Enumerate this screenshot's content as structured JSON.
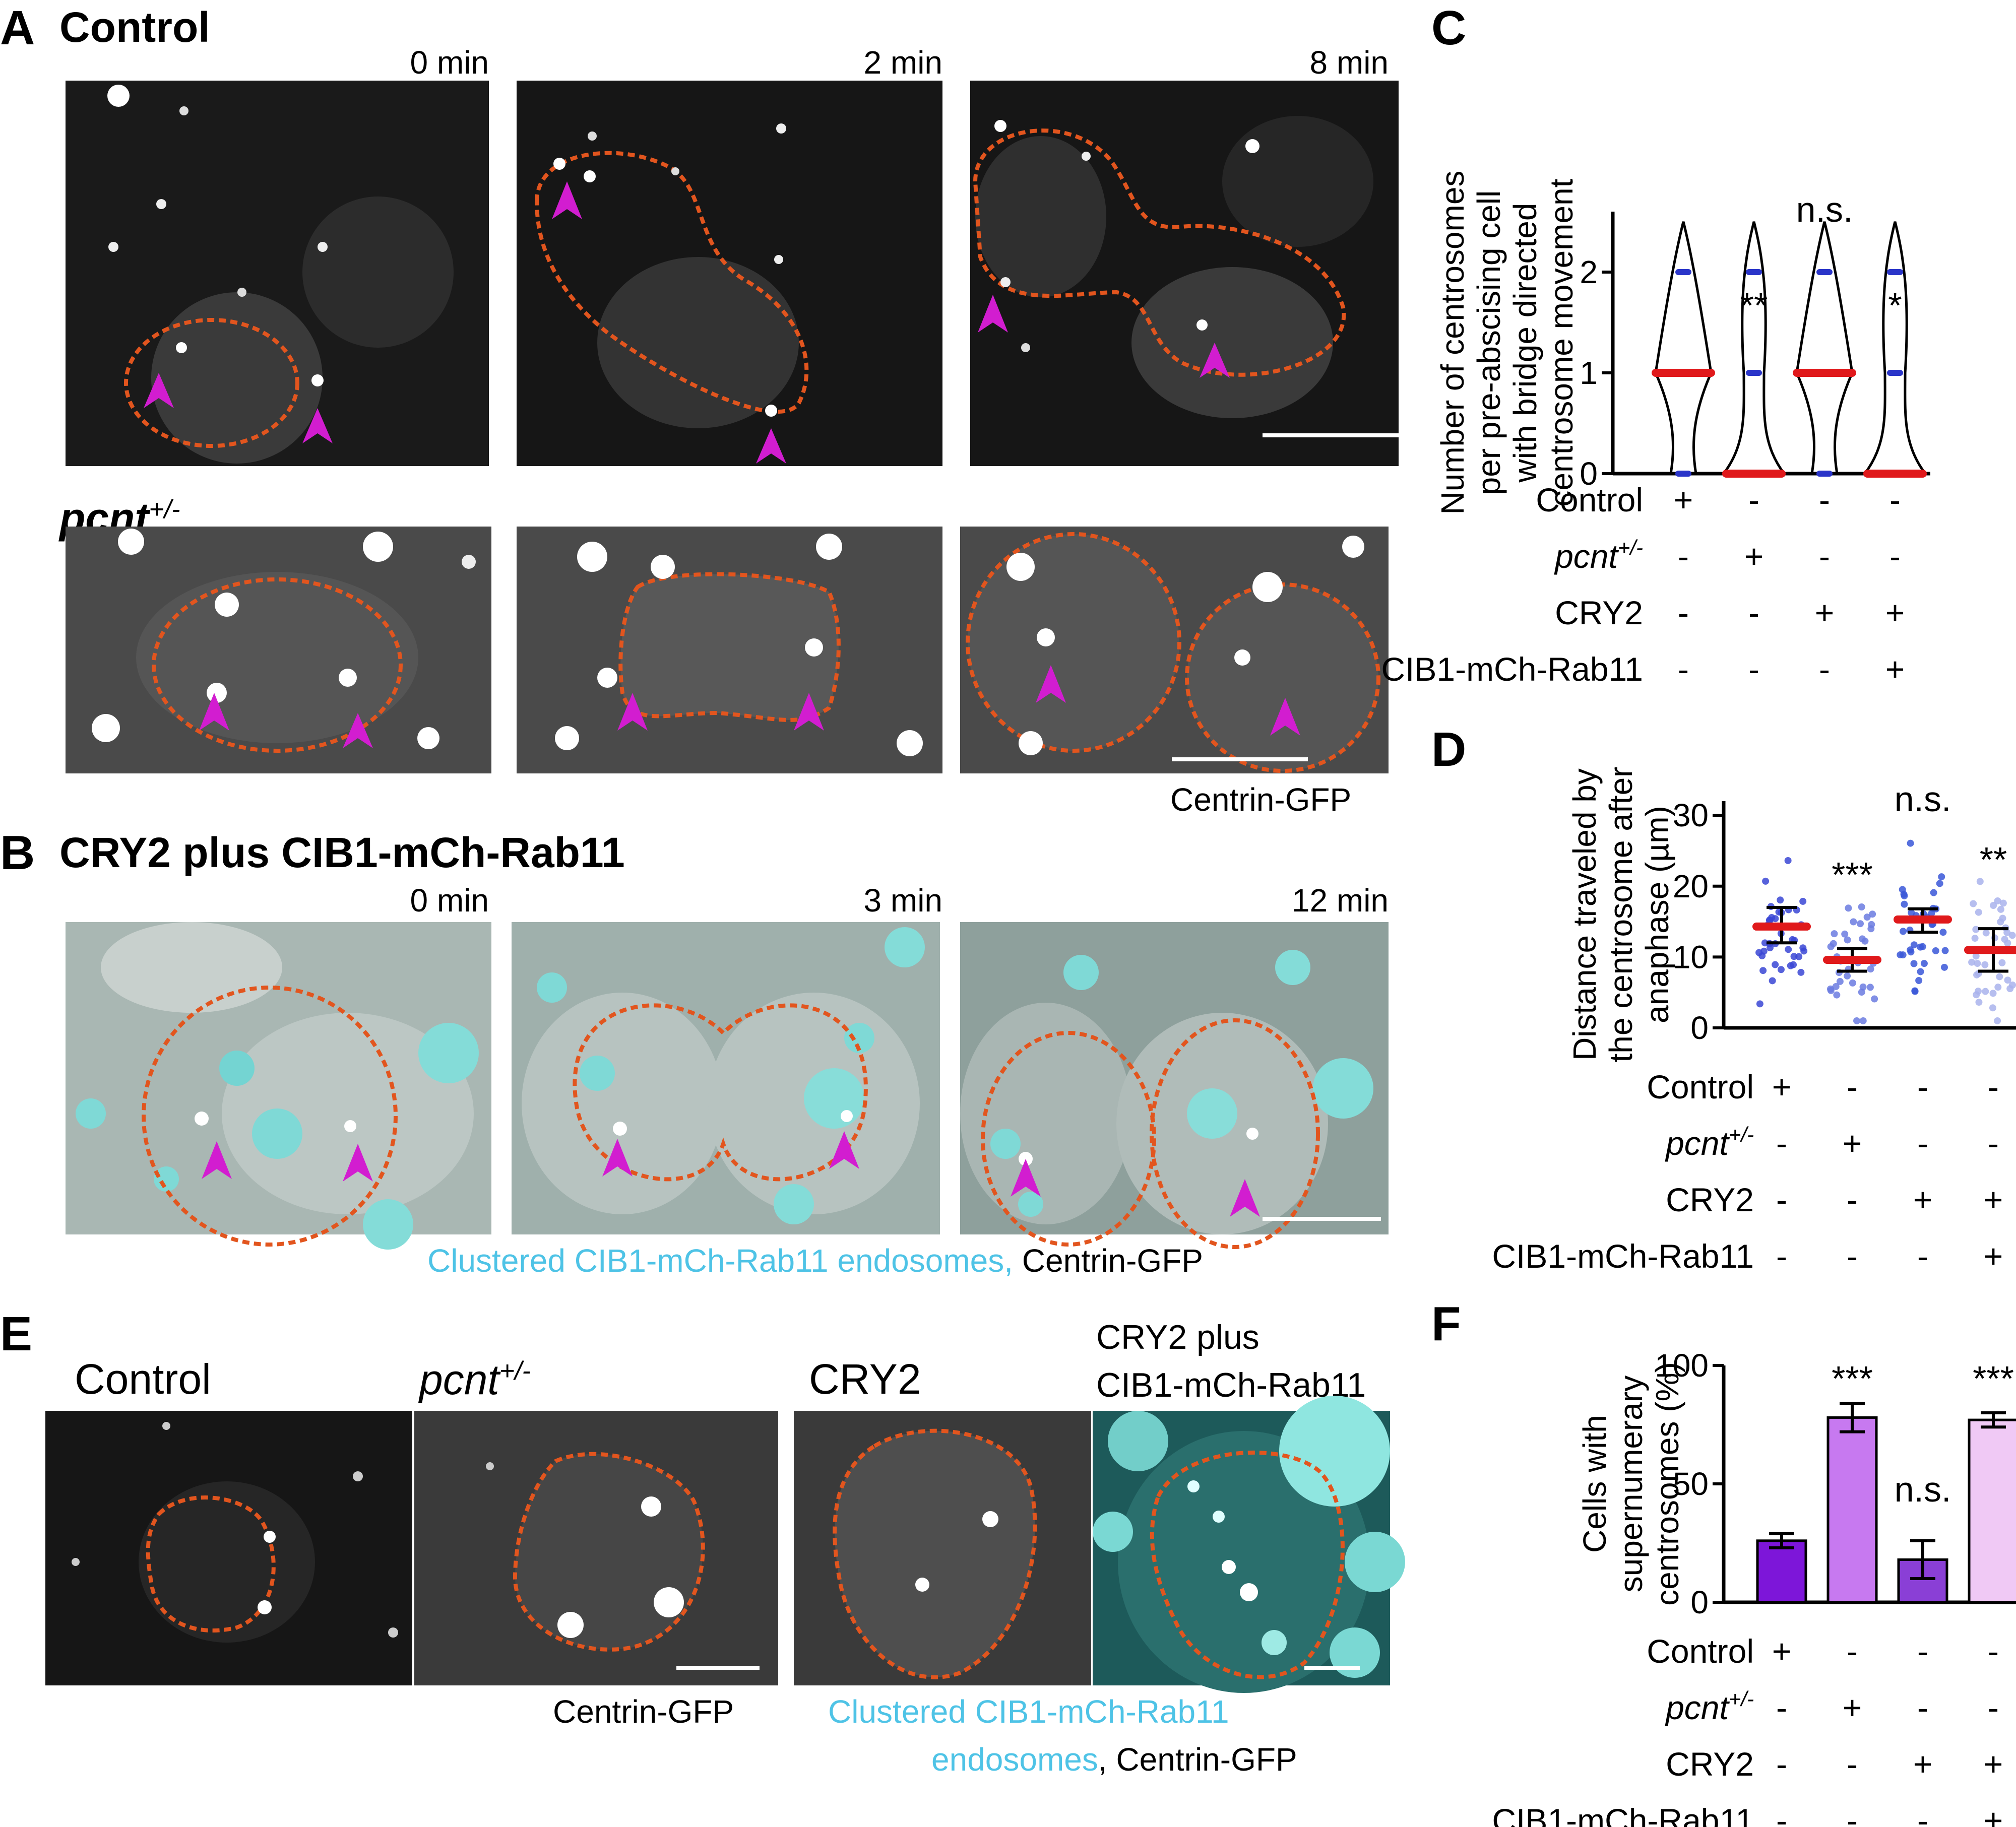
{
  "panels": {
    "a": {
      "letter": "A",
      "control_title": "Control",
      "times": [
        "0 min",
        "2 min",
        "8 min"
      ],
      "pcnt_title": "pcnt",
      "pcnt_sup": "+/-",
      "caption": "Centrin-GFP"
    },
    "b": {
      "letter": "B",
      "title": "CRY2 plus CIB1-mCh-Rab11",
      "times": [
        "0 min",
        "3 min",
        "12 min"
      ],
      "caption_cyan": "Clustered CIB1-mCh-Rab11 endosomes,",
      "caption_black": "Centrin-GFP"
    },
    "e": {
      "letter": "E",
      "labels": [
        "Control",
        "pcnt",
        "CRY2",
        "CRY2 plus",
        "CIB1-mCh-Rab11"
      ],
      "pcnt_sup": "+/-",
      "caption_left": "Centrin-GFP",
      "caption_right_cyan_1": "Clustered CIB1-mCh-Rab11",
      "caption_right_cyan_2": "endosomes",
      "caption_right_black": ", Centrin-GFP"
    }
  },
  "conditions_table": {
    "rows": [
      "Control",
      "pcnt",
      "CRY2",
      "CIB1-mCh-Rab11"
    ],
    "pcnt_sup": "+/-",
    "signs": [
      [
        "+",
        "-",
        "-",
        "-"
      ],
      [
        "-",
        "+",
        "-",
        "-"
      ],
      [
        "-",
        "-",
        "+",
        "+"
      ],
      [
        "-",
        "-",
        "-",
        "+"
      ]
    ]
  },
  "chart_data": [
    {
      "panel": "C",
      "type": "violin",
      "ylabel": "Number of centrosomes per pre-abscising cell with bridge directed centrosome movement",
      "ylabel_lines": [
        "Number of centrosomes",
        "per pre-abscising cell",
        "with bridge directed",
        "centrosome movement"
      ],
      "yticks": [
        0,
        1,
        2
      ],
      "ylim": [
        0,
        2.6
      ],
      "medians": [
        1,
        0,
        1,
        0
      ],
      "significance": [
        "",
        "**",
        "n.s.",
        "*"
      ],
      "colors": {
        "median": "#e0191b",
        "points": "#2a35c9"
      }
    },
    {
      "panel": "D",
      "type": "scatter",
      "ylabel": "Distance traveled by the centrosome after anaphase (µm)",
      "ylabel_lines": [
        "Distance traveled by",
        "the centrosome after",
        "anaphase (µm)"
      ],
      "yticks": [
        0,
        10,
        20,
        30
      ],
      "ylim": [
        0,
        32
      ],
      "medians": [
        14.3,
        9.6,
        15.3,
        11.0
      ],
      "error_low": [
        12.0,
        8.0,
        13.5,
        8.0
      ],
      "error_high": [
        17.0,
        11.2,
        16.8,
        14.0
      ],
      "significance": [
        "",
        "***",
        "n.s.",
        "**"
      ],
      "point_colors": [
        "#3a47d5",
        "#6b7be0",
        "#3a57d8",
        "#a9b3ec"
      ]
    },
    {
      "panel": "F",
      "type": "bar",
      "ylabel": "Cells with supernumerary centrosomes (%)",
      "ylabel_lines": [
        "Cells with",
        "supernumerary",
        "centrosomes (%)"
      ],
      "yticks": [
        0,
        50,
        100
      ],
      "ylim": [
        0,
        100
      ],
      "values": [
        26,
        78,
        18,
        77
      ],
      "errors": [
        3,
        6,
        8,
        3
      ],
      "significance": [
        "",
        "***",
        "n.s.",
        "***"
      ],
      "bar_colors": [
        "#7d16d9",
        "#c779f0",
        "#8a3fd6",
        "#f0c9f5"
      ]
    }
  ]
}
